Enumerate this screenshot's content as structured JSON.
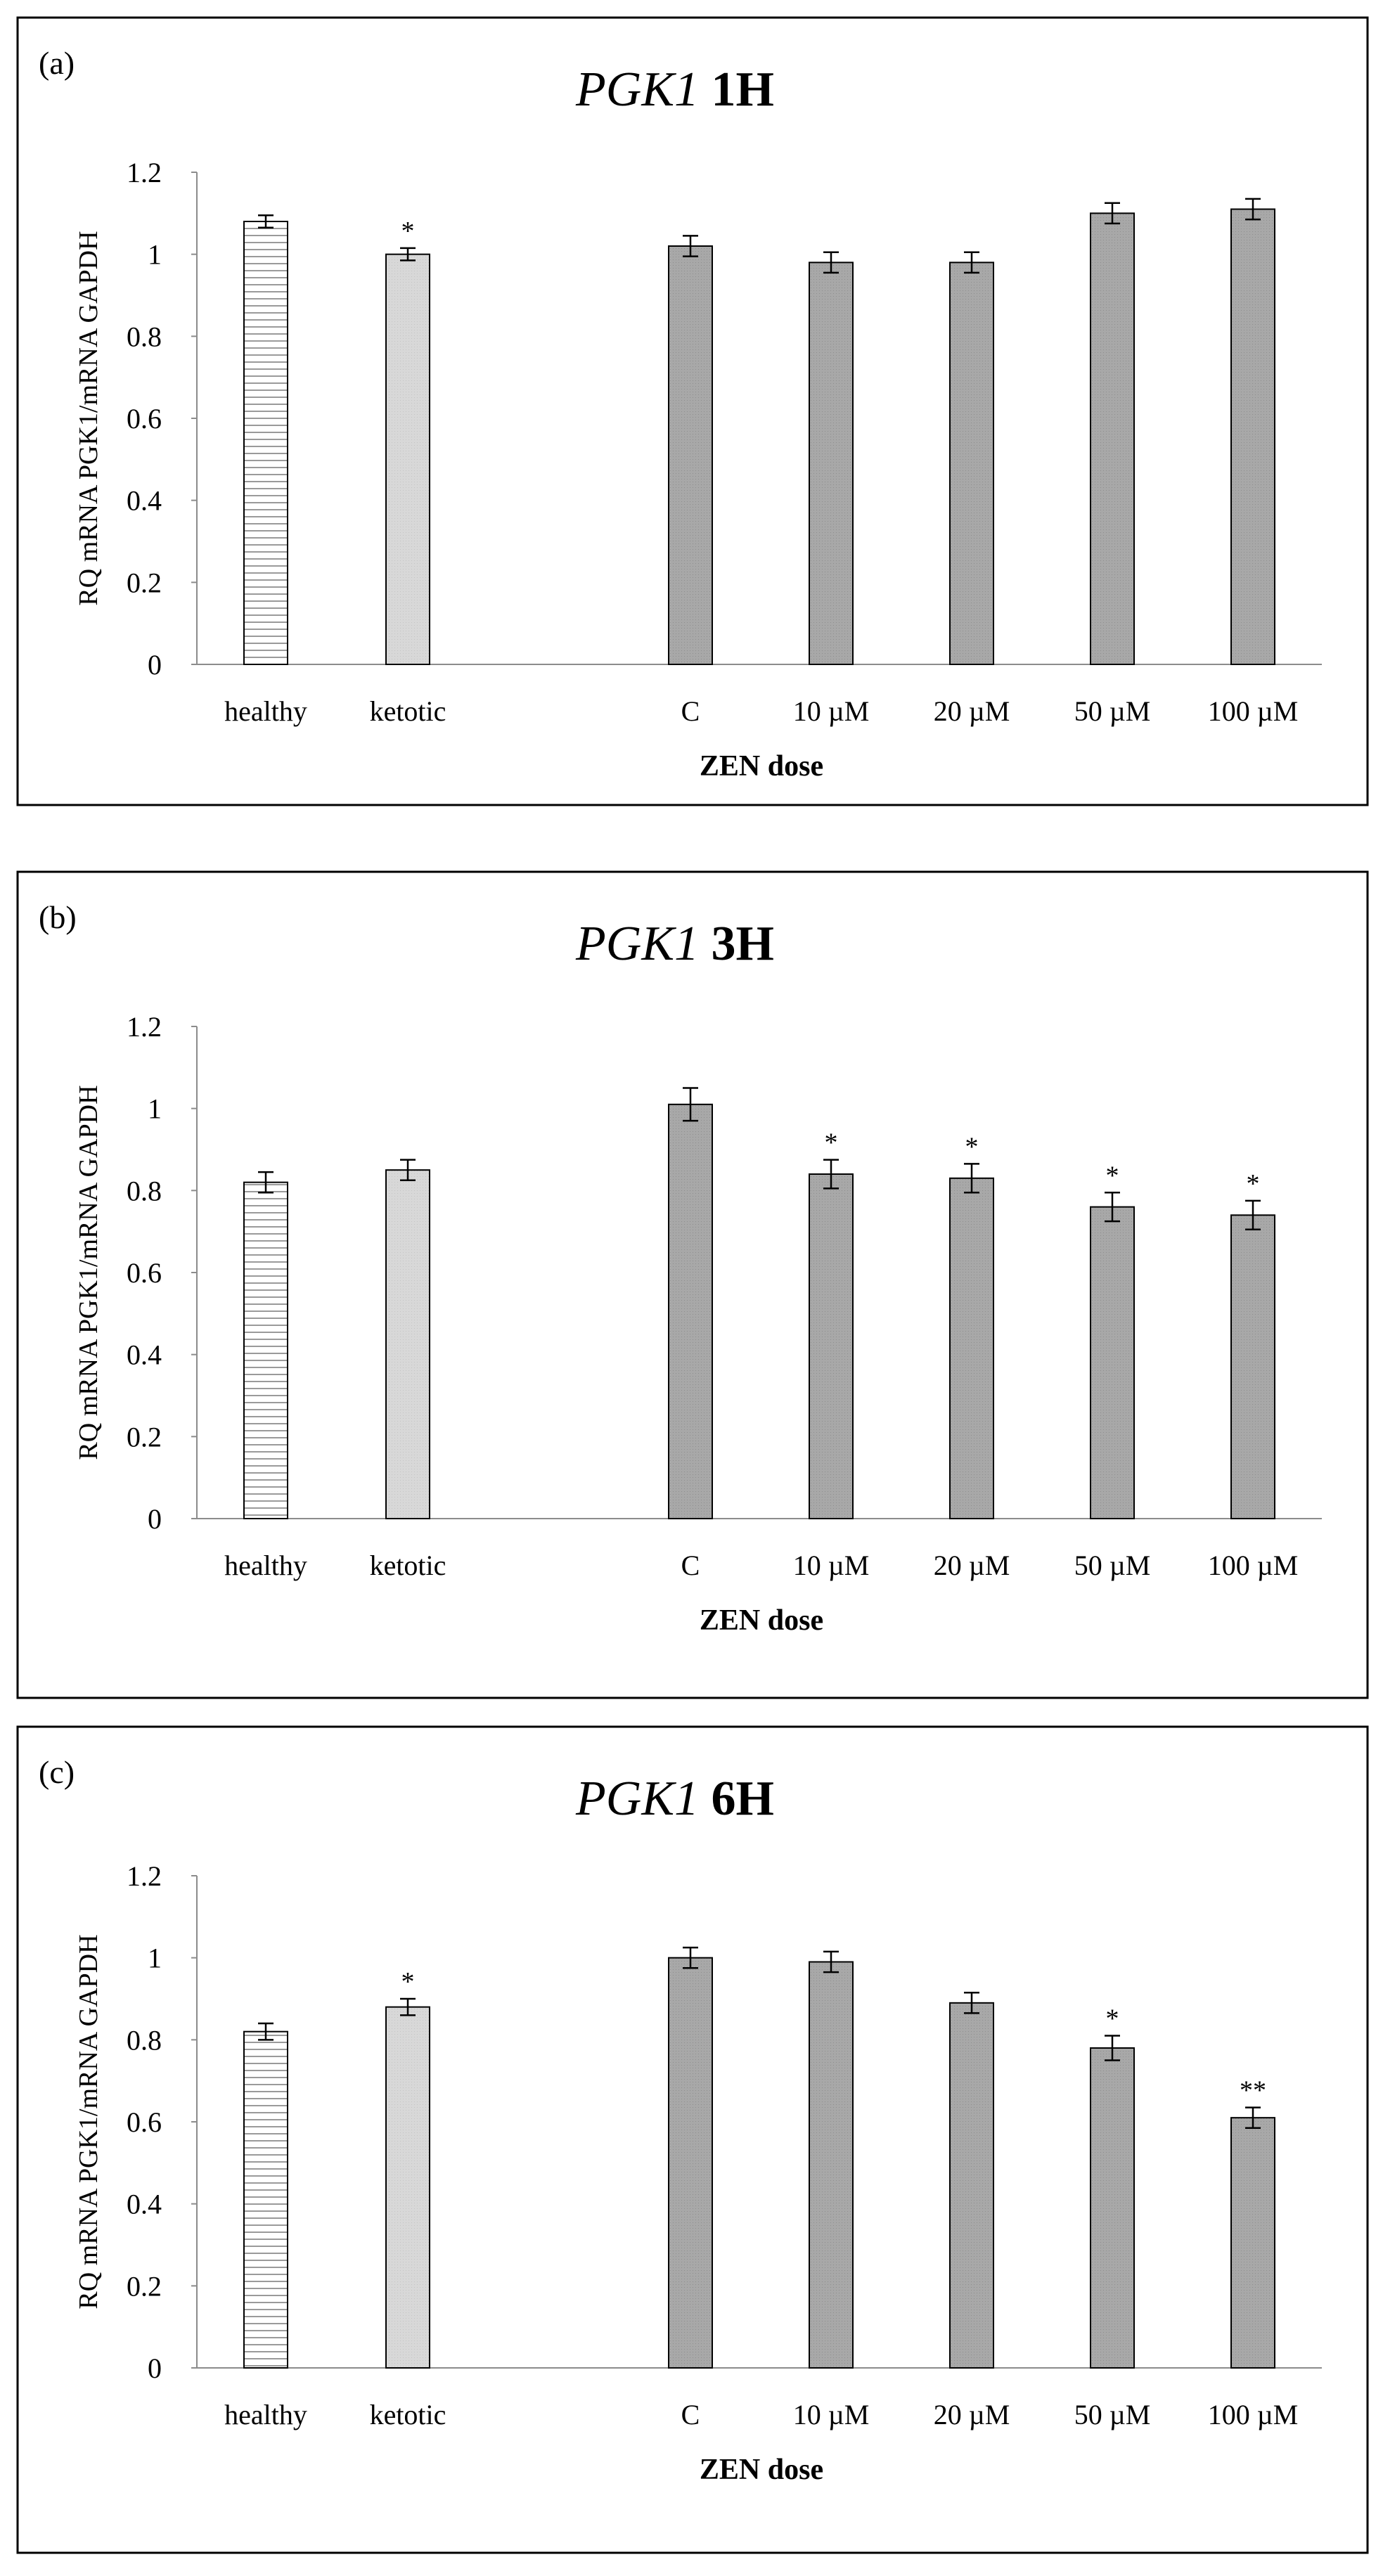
{
  "chart_data": [
    {
      "type": "bar",
      "panel_label": "(a)",
      "title_gene": "PGK1",
      "title_time": "1H",
      "ylabel": "RQ mRNA PGK1/mRNA GAPDH",
      "xlabel": "ZEN dose",
      "ylim": [
        0,
        1.2
      ],
      "yticks": [
        "0",
        "0.2",
        "0.4",
        "0.6",
        "0.8",
        "1",
        "1.2"
      ],
      "categories": [
        "healthy",
        "ketotic",
        "C",
        "10 µM",
        "20 µM",
        "50 µM",
        "100 µM"
      ],
      "values": [
        1.08,
        1.0,
        1.02,
        0.98,
        0.98,
        1.1,
        1.11
      ],
      "errors": [
        0.015,
        0.015,
        0.025,
        0.025,
        0.025,
        0.025,
        0.025
      ],
      "significance": [
        "",
        "*",
        "",
        "",
        "",
        "",
        ""
      ],
      "styles": [
        "striped",
        "light",
        "dark",
        "dark",
        "dark",
        "dark",
        "dark"
      ]
    },
    {
      "type": "bar",
      "panel_label": "(b)",
      "title_gene": "PGK1",
      "title_time": "3H",
      "ylabel": "RQ mRNA PGK1/mRNA GAPDH",
      "xlabel": "ZEN dose",
      "ylim": [
        0,
        1.2
      ],
      "yticks": [
        "0",
        "0.2",
        "0.4",
        "0.6",
        "0.8",
        "1",
        "1.2"
      ],
      "categories": [
        "healthy",
        "ketotic",
        "C",
        "10 µM",
        "20 µM",
        "50 µM",
        "100 µM"
      ],
      "values": [
        0.82,
        0.85,
        1.01,
        0.84,
        0.83,
        0.76,
        0.74
      ],
      "errors": [
        0.025,
        0.025,
        0.04,
        0.035,
        0.035,
        0.035,
        0.035
      ],
      "significance": [
        "",
        "",
        "",
        "*",
        "*",
        "*",
        "*"
      ],
      "styles": [
        "striped",
        "light",
        "dark",
        "dark",
        "dark",
        "dark",
        "dark"
      ]
    },
    {
      "type": "bar",
      "panel_label": "(c)",
      "title_gene": "PGK1",
      "title_time": "6H",
      "ylabel": "RQ mRNA PGK1/mRNA GAPDH",
      "xlabel": "ZEN dose",
      "ylim": [
        0,
        1.2
      ],
      "yticks": [
        "0",
        "0.2",
        "0.4",
        "0.6",
        "0.8",
        "1",
        "1.2"
      ],
      "categories": [
        "healthy",
        "ketotic",
        "C",
        "10 µM",
        "20 µM",
        "50 µM",
        "100 µM"
      ],
      "values": [
        0.82,
        0.88,
        1.0,
        0.99,
        0.89,
        0.78,
        0.61
      ],
      "errors": [
        0.02,
        0.02,
        0.025,
        0.025,
        0.025,
        0.03,
        0.025
      ],
      "significance": [
        "",
        "*",
        "",
        "",
        "",
        "*",
        "**"
      ],
      "styles": [
        "striped",
        "light",
        "dark",
        "dark",
        "dark",
        "dark",
        "dark"
      ]
    }
  ],
  "colors": {
    "light_bar": "#d8d8d8",
    "dark_bar": "#a8a8a8",
    "stripe_line": "#9a9a9a",
    "axis": "#8c8c8c",
    "frame": "#000000"
  }
}
